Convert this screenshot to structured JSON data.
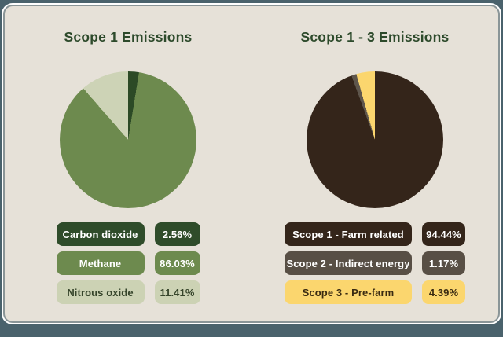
{
  "page": {
    "background": "#4a626c",
    "card_background": "#e6e1d8",
    "divider_color": "#d6d2c8",
    "title_color": "#2d4a2b"
  },
  "charts": [
    {
      "title": "Scope 1 Emissions",
      "legend": [
        {
          "label": "Carbon dioxide",
          "value": "2.56%",
          "bg": "#2f4c2a",
          "text_color": "#ffffff"
        },
        {
          "label": "Methane",
          "value": "86.03%",
          "bg": "#6d8a4e",
          "text_color": "#ffffff"
        },
        {
          "label": "Nitrous oxide",
          "value": "11.41%",
          "bg": "#ccd2b4",
          "text_color": "#36452b"
        }
      ]
    },
    {
      "title": "Scope 1 - 3 Emissions",
      "legend": [
        {
          "label": "Scope 1 - Farm related",
          "value": "94.44%",
          "bg": "#34251a",
          "text_color": "#ffffff"
        },
        {
          "label": "Scope 2 - Indirect energy",
          "value": "1.17%",
          "bg": "#584f45",
          "text_color": "#ffffff"
        },
        {
          "label": "Scope 3 - Pre-farm",
          "value": "4.39%",
          "bg": "#fbd66e",
          "text_color": "#3a2b12"
        }
      ]
    }
  ],
  "chart_data": [
    {
      "type": "pie",
      "title": "Scope 1 Emissions",
      "labels": [
        "Carbon dioxide",
        "Methane",
        "Nitrous oxide"
      ],
      "values": [
        2.56,
        86.03,
        11.41
      ],
      "colors": [
        "#2c4a26",
        "#6d8a4e",
        "#cdd3b6"
      ],
      "start_angle_deg": 0,
      "direction": "clockwise",
      "legend_position": "bottom"
    },
    {
      "type": "pie",
      "title": "Scope 1 - 3 Emissions",
      "labels": [
        "Scope 1 - Farm related",
        "Scope 2 - Indirect energy",
        "Scope 3 - Pre-farm"
      ],
      "values": [
        94.44,
        1.17,
        4.39
      ],
      "colors": [
        "#34251a",
        "#5e564c",
        "#fbd66e"
      ],
      "start_angle_deg": 0,
      "direction": "clockwise",
      "legend_position": "bottom"
    }
  ]
}
